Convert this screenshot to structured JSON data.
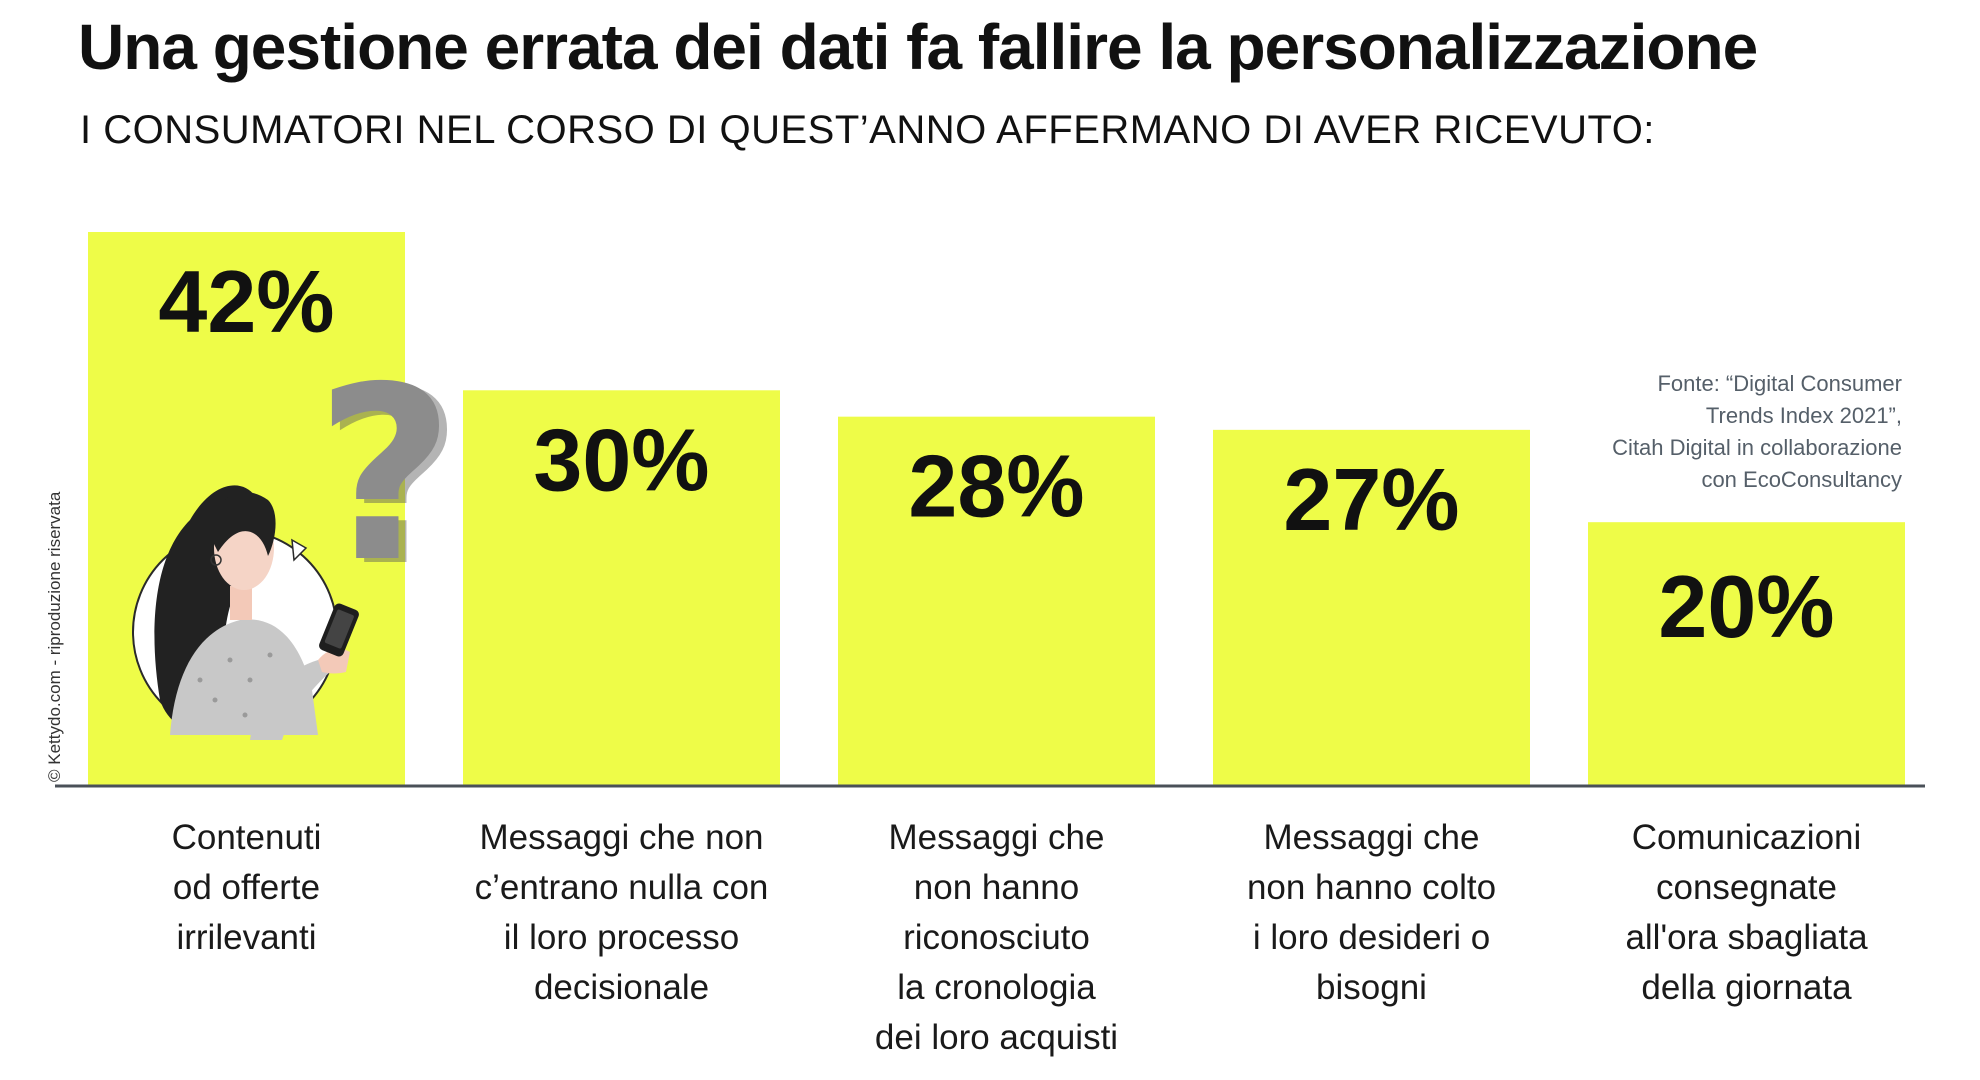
{
  "title": "Una gestione errata dei dati fa fallire la personalizzazione",
  "subtitle": "I CONSUMATORI NEL CORSO DI QUEST’ANNO AFFERMANO DI AVER RICEVUTO:",
  "source": [
    "Fonte: “Digital Consumer",
    "Trends Index 2021”,",
    "Citah Digital in collaborazione",
    "con EcoConsultancy"
  ],
  "copyright": "© Kettydo.com - riproduzione riservata",
  "colors": {
    "bar": "#eefc48",
    "axis": "#4a5058",
    "text": "#111111"
  },
  "illustration": {
    "icon": "woman-with-smartphone-question-mark"
  },
  "chart_data": {
    "type": "bar",
    "categories": [
      [
        "Contenuti",
        "od offerte",
        "irrilevanti"
      ],
      [
        "Messaggi che non",
        "c’entrano nulla con",
        "il loro processo",
        "decisionale"
      ],
      [
        "Messaggi che",
        "non hanno",
        "riconosciuto",
        "la cronologia",
        "dei loro acquisti"
      ],
      [
        "Messaggi che",
        "non hanno colto",
        "i loro desideri o",
        "bisogni"
      ],
      [
        "Comunicazioni",
        "consegnate",
        "all'ora sbagliata",
        "della giornata"
      ]
    ],
    "values": [
      42,
      30,
      28,
      27,
      20
    ],
    "value_labels": [
      "42%",
      "30%",
      "28%",
      "27%",
      "20%"
    ],
    "unit": "%",
    "ylim": [
      0,
      42
    ],
    "grid": false,
    "legend": false
  }
}
